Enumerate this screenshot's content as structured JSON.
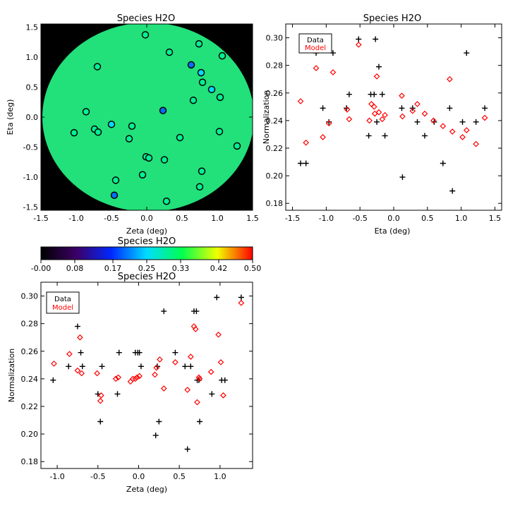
{
  "chart_data": [
    {
      "type": "scatter",
      "title": "Species H2O",
      "xlabel": "Zeta (deg)",
      "ylabel": "Eta (deg)",
      "xlim": [
        -1.5,
        1.5
      ],
      "ylim": [
        -1.55,
        1.55
      ],
      "xticks": [
        "-1.5",
        "-1.0",
        "-0.5",
        "0.0",
        "0.5",
        "1.0",
        "1.5"
      ],
      "yticks": [
        "-1.5",
        "-1.0",
        "-0.5",
        "0.0",
        "0.5",
        "1.0",
        "1.5"
      ],
      "field_color": "#22e07a",
      "background_color": "#000000",
      "points": [
        {
          "x": -0.02,
          "y": 1.37,
          "v": 0.3
        },
        {
          "x": 0.32,
          "y": 1.08,
          "v": 0.3
        },
        {
          "x": 0.74,
          "y": 1.22,
          "v": 0.3
        },
        {
          "x": 1.07,
          "y": 1.02,
          "v": 0.3
        },
        {
          "x": -0.7,
          "y": 0.84,
          "v": 0.3
        },
        {
          "x": 0.63,
          "y": 0.87,
          "v": 0.2
        },
        {
          "x": 0.77,
          "y": 0.74,
          "v": 0.25
        },
        {
          "x": 0.79,
          "y": 0.58,
          "v": 0.3
        },
        {
          "x": 0.92,
          "y": 0.46,
          "v": 0.25
        },
        {
          "x": 1.04,
          "y": 0.33,
          "v": 0.3
        },
        {
          "x": 0.66,
          "y": 0.28,
          "v": 0.3
        },
        {
          "x": 0.23,
          "y": 0.11,
          "v": 0.2
        },
        {
          "x": -0.86,
          "y": 0.09,
          "v": 0.3
        },
        {
          "x": -0.5,
          "y": -0.12,
          "v": 0.25
        },
        {
          "x": -0.21,
          "y": -0.15,
          "v": 0.3
        },
        {
          "x": -0.74,
          "y": -0.2,
          "v": 0.3
        },
        {
          "x": -0.69,
          "y": -0.25,
          "v": 0.3
        },
        {
          "x": -1.03,
          "y": -0.26,
          "v": 0.3
        },
        {
          "x": 1.03,
          "y": -0.24,
          "v": 0.3
        },
        {
          "x": -0.25,
          "y": -0.36,
          "v": 0.3
        },
        {
          "x": 0.47,
          "y": -0.34,
          "v": 0.3
        },
        {
          "x": 1.28,
          "y": -0.48,
          "v": 0.3
        },
        {
          "x": -0.01,
          "y": -0.66,
          "v": 0.3
        },
        {
          "x": 0.03,
          "y": -0.68,
          "v": 0.3
        },
        {
          "x": 0.25,
          "y": -0.71,
          "v": 0.3
        },
        {
          "x": 0.78,
          "y": -0.9,
          "v": 0.3
        },
        {
          "x": -0.06,
          "y": -0.96,
          "v": 0.3
        },
        {
          "x": -0.44,
          "y": -1.05,
          "v": 0.3
        },
        {
          "x": 0.75,
          "y": -1.16,
          "v": 0.3
        },
        {
          "x": -0.46,
          "y": -1.3,
          "v": 0.2
        },
        {
          "x": 0.28,
          "y": -1.4,
          "v": 0.3
        }
      ]
    },
    {
      "type": "colorbar",
      "title": "Species H2O",
      "range": [
        0,
        0.5
      ],
      "ticks": [
        "-0.00",
        "0.08",
        "0.17",
        "0.25",
        "0.33",
        "0.42",
        "0.50"
      ],
      "colors": [
        "#000000",
        "#3c0064",
        "#0028ff",
        "#00dcff",
        "#00ff50",
        "#f0ff00",
        "#ff0000"
      ]
    },
    {
      "type": "scatter",
      "title": "Species H2O",
      "xlabel": "Eta (deg)",
      "ylabel": "Normalization",
      "xlim": [
        -1.6,
        1.6
      ],
      "ylim": [
        0.175,
        0.31
      ],
      "xticks": [
        "-1.5",
        "-1.0",
        "-0.5",
        "0.0",
        "0.5",
        "1.0",
        "1.5"
      ],
      "yticks": [
        "0.18",
        "0.20",
        "0.22",
        "0.24",
        "0.26",
        "0.28",
        "0.30"
      ],
      "legend": {
        "position": "top-left",
        "entries": [
          "Data",
          "Model"
        ]
      },
      "series": [
        {
          "name": "Data",
          "marker": "plus",
          "color": "#000000",
          "x": [
            -1.38,
            -1.3,
            -1.15,
            -1.05,
            -0.96,
            -0.9,
            -0.7,
            -0.66,
            -0.52,
            -0.37,
            -0.34,
            -0.29,
            -0.27,
            -0.25,
            -0.22,
            -0.17,
            -0.13,
            0.12,
            0.13,
            0.28,
            0.35,
            0.46,
            0.6,
            0.73,
            0.83,
            0.87,
            1.02,
            1.08,
            1.22,
            1.35
          ],
          "y": [
            0.209,
            0.209,
            0.289,
            0.249,
            0.239,
            0.289,
            0.249,
            0.259,
            0.299,
            0.229,
            0.259,
            0.259,
            0.299,
            0.239,
            0.279,
            0.259,
            0.229,
            0.249,
            0.199,
            0.249,
            0.239,
            0.229,
            0.239,
            0.209,
            0.249,
            0.189,
            0.239,
            0.289,
            0.239,
            0.249
          ]
        },
        {
          "name": "Model",
          "marker": "diamond",
          "color": "#ff0000",
          "x": [
            -1.38,
            -1.3,
            -1.15,
            -1.05,
            -0.96,
            -0.9,
            -0.69,
            -0.66,
            -0.52,
            -0.36,
            -0.33,
            -0.29,
            -0.28,
            -0.25,
            -0.22,
            -0.17,
            -0.13,
            0.12,
            0.13,
            0.28,
            0.35,
            0.46,
            0.59,
            0.73,
            0.83,
            0.87,
            1.02,
            1.08,
            1.22,
            1.35
          ],
          "y": [
            0.254,
            0.224,
            0.278,
            0.228,
            0.238,
            0.275,
            0.248,
            0.241,
            0.295,
            0.24,
            0.252,
            0.25,
            0.245,
            0.272,
            0.246,
            0.241,
            0.244,
            0.258,
            0.243,
            0.247,
            0.252,
            0.245,
            0.24,
            0.236,
            0.27,
            0.232,
            0.228,
            0.233,
            0.223,
            0.242
          ]
        }
      ]
    },
    {
      "type": "scatter",
      "title": "Species H2O",
      "xlabel": "Zeta (deg)",
      "ylabel": "Normalization",
      "xlim": [
        -1.2,
        1.4
      ],
      "ylim": [
        0.175,
        0.31
      ],
      "xticks": [
        "-1.0",
        "-0.5",
        "0.0",
        "0.5",
        "1.0"
      ],
      "yticks": [
        "0.18",
        "0.20",
        "0.22",
        "0.24",
        "0.26",
        "0.28",
        "0.30"
      ],
      "legend": {
        "position": "top-left",
        "entries": [
          "Data",
          "Model"
        ]
      },
      "series": [
        {
          "name": "Data",
          "marker": "plus",
          "color": "#000000",
          "x": [
            -1.05,
            -0.86,
            -0.75,
            -0.71,
            -0.69,
            -0.5,
            -0.47,
            -0.45,
            -0.26,
            -0.24,
            -0.04,
            -0.01,
            0.01,
            0.03,
            0.21,
            0.23,
            0.25,
            0.31,
            0.45,
            0.57,
            0.6,
            0.64,
            0.68,
            0.71,
            0.72,
            0.74,
            0.75,
            0.9,
            0.96,
            1.02,
            1.06,
            1.26
          ],
          "y": [
            0.239,
            0.249,
            0.278,
            0.259,
            0.249,
            0.229,
            0.209,
            0.249,
            0.229,
            0.259,
            0.259,
            0.259,
            0.259,
            0.249,
            0.199,
            0.249,
            0.209,
            0.289,
            0.259,
            0.249,
            0.189,
            0.249,
            0.289,
            0.289,
            0.239,
            0.239,
            0.209,
            0.229,
            0.299,
            0.239,
            0.239,
            0.299
          ]
        },
        {
          "name": "Model",
          "marker": "diamond",
          "color": "#ff0000",
          "x": [
            -1.04,
            -0.85,
            -0.75,
            -0.72,
            -0.7,
            -0.51,
            -0.47,
            -0.46,
            -0.28,
            -0.25,
            -0.1,
            -0.07,
            -0.04,
            -0.02,
            0.01,
            0.2,
            0.22,
            0.26,
            0.31,
            0.45,
            0.6,
            0.64,
            0.68,
            0.7,
            0.72,
            0.74,
            0.75,
            0.89,
            0.98,
            1.01,
            1.04,
            1.26
          ],
          "y": [
            0.251,
            0.258,
            0.246,
            0.27,
            0.244,
            0.244,
            0.224,
            0.228,
            0.24,
            0.241,
            0.238,
            0.24,
            0.24,
            0.241,
            0.242,
            0.243,
            0.248,
            0.254,
            0.233,
            0.252,
            0.232,
            0.256,
            0.278,
            0.276,
            0.223,
            0.241,
            0.24,
            0.245,
            0.272,
            0.252,
            0.228,
            0.295
          ]
        }
      ]
    }
  ]
}
